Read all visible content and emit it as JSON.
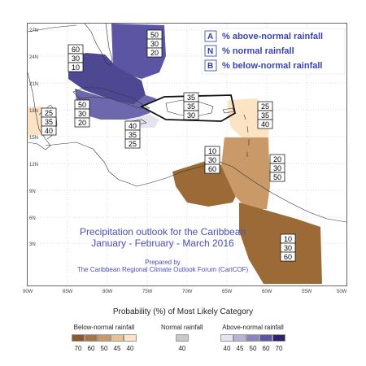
{
  "map": {
    "lat_ticks": [
      "27N",
      "24N",
      "21N",
      "18N",
      "15N",
      "12N",
      "9N",
      "6N",
      "3N"
    ],
    "lon_ticks": [
      "90W",
      "85W",
      "80W",
      "75W",
      "70W",
      "65W",
      "60W",
      "55W",
      "50W"
    ],
    "legend": [
      {
        "key": "A",
        "text": "% above-normal rainfall"
      },
      {
        "key": "N",
        "text": "% normal rainfall"
      },
      {
        "key": "B",
        "text": "% below-normal rainfall"
      }
    ],
    "regions": [
      {
        "name": "bahamas",
        "values": [
          "50",
          "30",
          "20"
        ],
        "color": "#5b55a3"
      },
      {
        "name": "cuba-north",
        "values": [
          "60",
          "30",
          "10"
        ],
        "color": "#4e4893"
      },
      {
        "name": "cuba-central",
        "values": [
          "50",
          "30",
          "20"
        ],
        "color": "#6d68ae"
      },
      {
        "name": "yucatan",
        "values": [
          "25",
          "35",
          "40"
        ],
        "color": "#fbe3c4"
      },
      {
        "name": "jamaica",
        "values": [
          "40",
          "35",
          "25"
        ],
        "color": "#e6e3f1"
      },
      {
        "name": "hispaniola-pr",
        "values": [
          "35",
          "35",
          "30"
        ],
        "color": "#ffffff"
      },
      {
        "name": "leeward",
        "values": [
          "25",
          "35",
          "40"
        ],
        "color": "#fbe3c4"
      },
      {
        "name": "abc-islands",
        "values": [
          "10",
          "30",
          "60"
        ],
        "color": "#9c6a36"
      },
      {
        "name": "windward",
        "values": [
          "20",
          "30",
          "50"
        ],
        "color": "#c99a68"
      },
      {
        "name": "guianas",
        "values": [
          "10",
          "30",
          "60"
        ],
        "color": "#9c6a36"
      }
    ],
    "outlook_title_line1": "Precipitation outlook for the Caribbean",
    "outlook_title_line2": "January - February - March 2016",
    "credit_line1": "Prepared by",
    "credit_line2": "The Caribbean Regional Climate Outlook Forum (CariCOF)"
  },
  "scale": {
    "title": "Probability (%) of Most Likely Category",
    "below": {
      "label": "Below-normal rainfall",
      "values": [
        "70",
        "60",
        "50",
        "45",
        "40"
      ],
      "colors": [
        "#8b5a2b",
        "#a87545",
        "#c99a68",
        "#e6c296",
        "#fbe3c4"
      ]
    },
    "normal": {
      "label": "Normal rainfall",
      "values": [
        "40"
      ],
      "colors": [
        "#c8c8c8"
      ]
    },
    "above": {
      "label": "Above-normal rainfall",
      "values": [
        "40",
        "45",
        "50",
        "60",
        "70"
      ],
      "colors": [
        "#e6e3f1",
        "#b8b4d8",
        "#8a84be",
        "#5b55a3",
        "#2a2470"
      ]
    }
  }
}
